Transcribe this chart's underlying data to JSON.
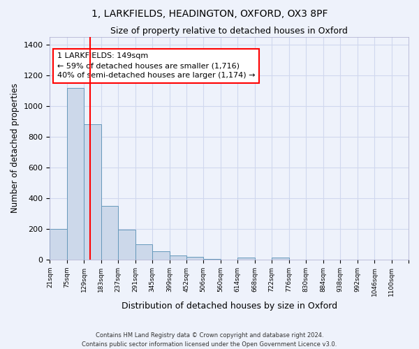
{
  "title_line1": "1, LARKFIELDS, HEADINGTON, OXFORD, OX3 8PF",
  "title_line2": "Size of property relative to detached houses in Oxford",
  "xlabel": "Distribution of detached houses by size in Oxford",
  "ylabel": "Number of detached properties",
  "bin_edges": [
    21,
    75,
    129,
    183,
    237,
    291,
    345,
    399,
    452,
    506,
    560,
    614,
    668,
    722,
    776,
    830,
    884,
    938,
    992,
    1046,
    1100
  ],
  "bar_heights": [
    200,
    1120,
    880,
    350,
    195,
    100,
    55,
    25,
    18,
    5,
    0,
    15,
    0,
    15,
    0,
    0,
    0,
    0,
    0,
    0
  ],
  "bar_color": "#ccd8ea",
  "bar_edgecolor": "#6699bb",
  "vline_x": 149,
  "vline_color": "red",
  "annotation_text": "1 LARKFIELDS: 149sqm\n← 59% of detached houses are smaller (1,716)\n40% of semi-detached houses are larger (1,174) →",
  "annotation_box_color": "white",
  "annotation_box_edgecolor": "red",
  "ylim": [
    0,
    1450
  ],
  "yticks": [
    0,
    200,
    400,
    600,
    800,
    1000,
    1200,
    1400
  ],
  "tick_labels": [
    "21sqm",
    "75sqm",
    "129sqm",
    "183sqm",
    "237sqm",
    "291sqm",
    "345sqm",
    "399sqm",
    "452sqm",
    "506sqm",
    "560sqm",
    "614sqm",
    "668sqm",
    "722sqm",
    "776sqm",
    "830sqm",
    "884sqm",
    "938sqm",
    "992sqm",
    "1046sqm",
    "1100sqm"
  ],
  "footer_text": "Contains HM Land Registry data © Crown copyright and database right 2024.\nContains public sector information licensed under the Open Government Licence v3.0.",
  "bg_color": "#eef2fb",
  "plot_bg_color": "#eef2fb",
  "grid_color": "#d0d8ee"
}
